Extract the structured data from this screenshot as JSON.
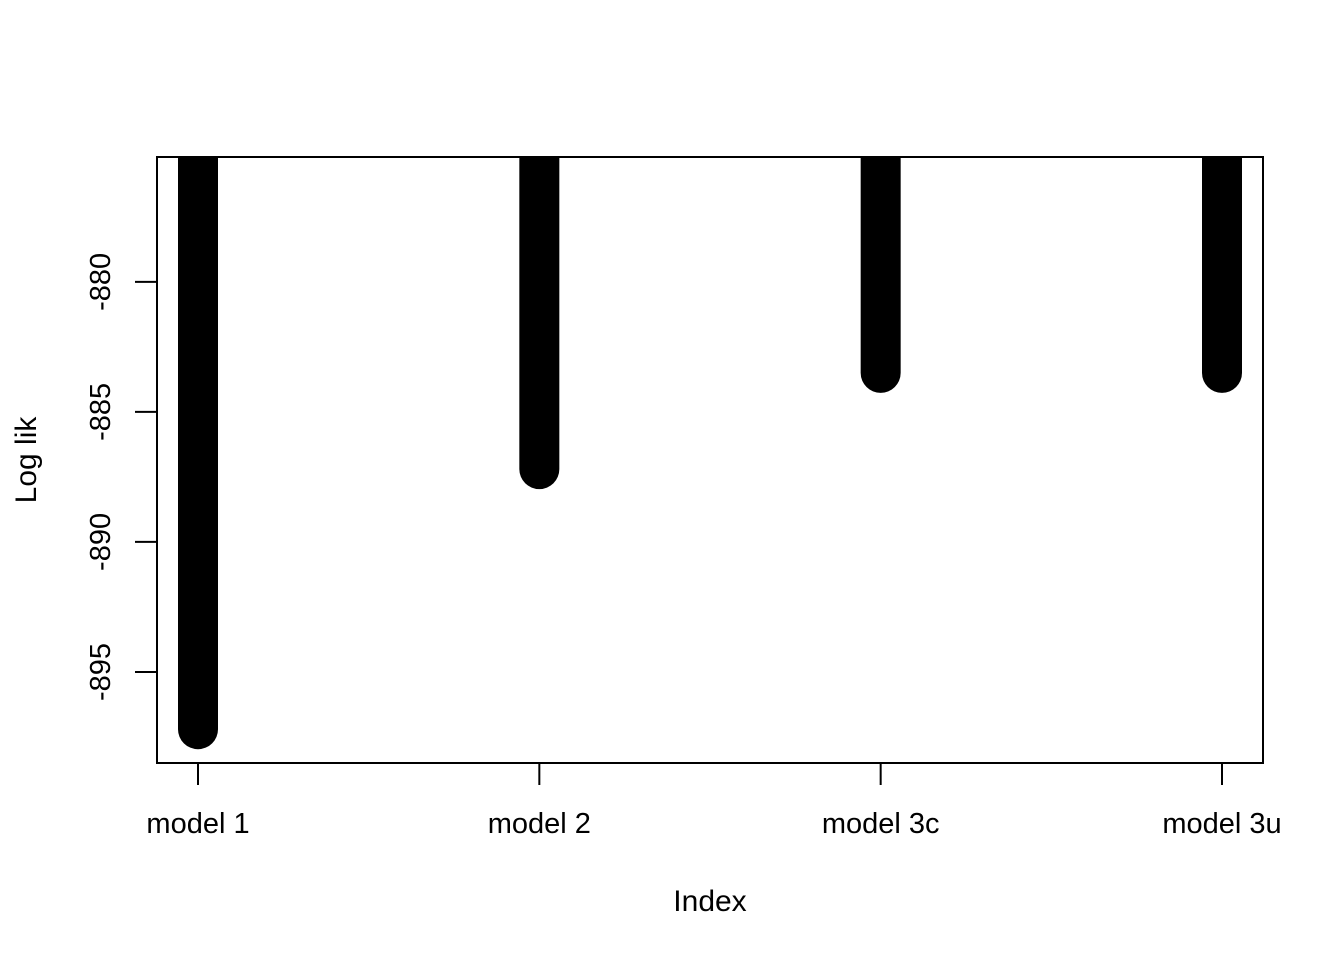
{
  "chart_data": {
    "type": "bar",
    "title": "",
    "xlabel": "Index",
    "ylabel": "Log lik",
    "categories": [
      "model 1",
      "model 2",
      "model 3c",
      "model 3u"
    ],
    "values": [
      -897.2,
      -887.2,
      -883.5,
      -883.5
    ],
    "ylim": [
      -898.5,
      -875.2
    ],
    "yticks": [
      -880,
      -885,
      -890,
      -895
    ],
    "ytick_labels": [
      "-880",
      "-885",
      "-890",
      "-895"
    ],
    "grid": false,
    "legend": "none",
    "bar_color": "#000000"
  }
}
